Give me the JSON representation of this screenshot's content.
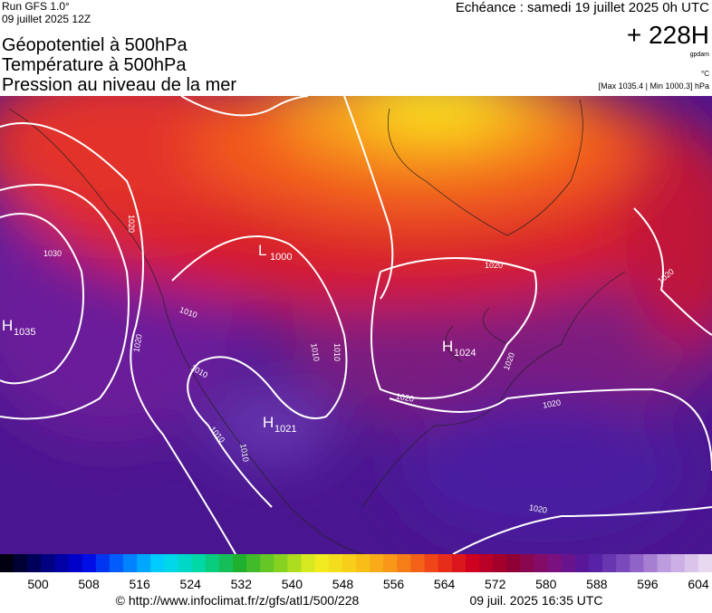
{
  "header": {
    "run": "Run GFS 1.0°",
    "date": "09 juillet 2025 12Z",
    "titles": [
      "Géopotentiel à 500hPa",
      "Température à 500hPa",
      "Pression au niveau de la mer"
    ],
    "valid": "Echéance : samedi 19 juillet 2025 0h UTC",
    "lead": "+ 228H",
    "unit_height": "gpdam",
    "unit_temp": "°C",
    "range": "[Max 1035.4 | Min 1000.3] hPa"
  },
  "map": {
    "centers": [
      {
        "label": "H",
        "value": "1035"
      },
      {
        "label": "L",
        "value": "1000"
      },
      {
        "label": "H",
        "value": "1024"
      },
      {
        "label": "H",
        "value": "1021"
      }
    ],
    "isobar_labels": [
      "1020",
      "1030",
      "1020",
      "1010",
      "1020",
      "1010",
      "1010",
      "1010",
      "1020",
      "1020",
      "1020",
      "1020",
      "1020",
      "1010",
      "1010"
    ]
  },
  "colorbar": {
    "ticks": [
      500,
      508,
      516,
      524,
      532,
      540,
      548,
      556,
      564,
      572,
      580,
      588,
      596,
      604
    ]
  },
  "footer": {
    "url": "© http://www.infoclimat.fr/z/gfs/atl1/500/228",
    "timestamp": "09 juil. 2025 16:35 UTC"
  }
}
